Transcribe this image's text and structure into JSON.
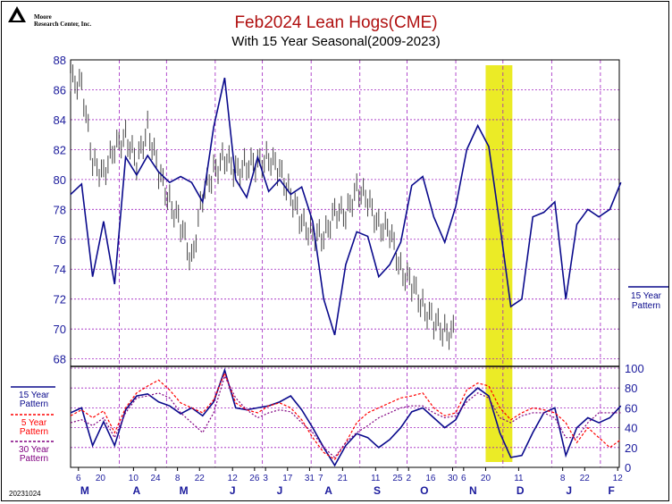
{
  "header": {
    "title": "Feb2024 Lean Hogs(CME)",
    "subtitle": "With 15 Year Seasonal(2009-2023)",
    "logo_text": [
      "Moore",
      "Research Center, Inc."
    ],
    "date_stamp": "20231024"
  },
  "colors": {
    "price_bars": "#444444",
    "seasonal_15": "#0a0a8c",
    "seasonal_5": "#ff0000",
    "seasonal_30": "#800080",
    "grid": "#a020c0",
    "highlight": "#e8e800",
    "axis_text": "#1a1a9c"
  },
  "chart_data": [
    {
      "type": "line",
      "panel": "price",
      "ylim": [
        67.5,
        88
      ],
      "yticks": [
        68,
        70,
        72,
        74,
        76,
        78,
        80,
        82,
        84,
        86,
        88
      ],
      "grid": true,
      "legend": [
        {
          "name": "15 Year Pattern",
          "label_lines": [
            "15 Year",
            "Pattern"
          ],
          "position": "right"
        }
      ],
      "highlight_window": {
        "start": "Nov 20",
        "end": "Dec 7"
      },
      "series": [
        {
          "name": "15 Year Pattern",
          "type": "line",
          "x": [
            "Mar 1",
            "Mar 8",
            "Mar 15",
            "Mar 22",
            "Mar 29",
            "Apr 5",
            "Apr 12",
            "Apr 19",
            "Apr 26",
            "May 3",
            "May 10",
            "May 17",
            "May 24",
            "May 31",
            "Jun 7",
            "Jun 14",
            "Jun 21",
            "Jun 28",
            "Jul 5",
            "Jul 12",
            "Jul 19",
            "Jul 26",
            "Aug 2",
            "Aug 9",
            "Aug 16",
            "Aug 23",
            "Aug 30",
            "Sep 6",
            "Sep 13",
            "Sep 20",
            "Sep 27",
            "Oct 4",
            "Oct 11",
            "Oct 18",
            "Oct 25",
            "Nov 1",
            "Nov 8",
            "Nov 15",
            "Nov 22",
            "Nov 29",
            "Dec 6",
            "Dec 13",
            "Dec 20",
            "Dec 27",
            "Jan 3",
            "Jan 10",
            "Jan 17",
            "Jan 24",
            "Jan 31",
            "Feb 7",
            "Feb 14"
          ],
          "values": [
            79.0,
            79.7,
            73.5,
            77.2,
            73.0,
            81.5,
            80.3,
            81.6,
            80.5,
            79.8,
            80.2,
            79.8,
            78.5,
            83.5,
            86.8,
            80.0,
            78.8,
            81.5,
            79.2,
            80.0,
            79.0,
            79.5,
            77.2,
            72.0,
            69.6,
            74.3,
            76.5,
            76.2,
            73.5,
            74.3,
            75.8,
            79.6,
            80.2,
            77.5,
            75.8,
            78.2,
            82.0,
            83.6,
            82.2,
            77.0,
            71.5,
            72.0,
            77.5,
            77.8,
            78.5,
            72.0,
            77.0,
            78.0,
            77.5,
            78.0,
            79.8
          ]
        },
        {
          "name": "Feb2024 Lean Hogs daily price",
          "type": "price_bars",
          "x": [
            "Mar 1",
            "Mar 8",
            "Mar 15",
            "Mar 22",
            "Mar 29",
            "Apr 5",
            "Apr 12",
            "Apr 19",
            "Apr 26",
            "May 3",
            "May 10",
            "May 17",
            "May 24",
            "May 31",
            "Jun 7",
            "Jun 14",
            "Jun 21",
            "Jun 28",
            "Jul 5",
            "Jul 12",
            "Jul 19",
            "Jul 26",
            "Aug 2",
            "Aug 9",
            "Aug 16",
            "Aug 23",
            "Aug 30",
            "Sep 6",
            "Sep 13",
            "Sep 20",
            "Sep 27",
            "Oct 4",
            "Oct 11",
            "Oct 18",
            "Oct 25"
          ],
          "values": [
            86.5,
            86.5,
            81.0,
            80.5,
            82.0,
            83.0,
            81.0,
            83.5,
            80.5,
            78.5,
            77.0,
            74.5,
            79.0,
            80.5,
            81.5,
            80.5,
            81.0,
            81.0,
            81.5,
            80.5,
            79.0,
            77.0,
            76.5,
            76.0,
            78.0,
            77.5,
            79.5,
            78.5,
            77.0,
            76.5,
            74.0,
            73.0,
            71.5,
            70.5,
            69.8
          ],
          "range": 1.2
        }
      ]
    },
    {
      "type": "line",
      "panel": "index",
      "ylim": [
        0,
        100
      ],
      "yticks": [
        0,
        20,
        40,
        60,
        80,
        100
      ],
      "grid": true,
      "legend": [
        {
          "name": "15 Year Pattern",
          "label_lines": [
            "15 Year",
            "Pattern"
          ],
          "position": "left"
        },
        {
          "name": "5 Year Pattern",
          "label_lines": [
            "5 Year",
            "Pattern"
          ],
          "position": "left"
        },
        {
          "name": "30 Year Pattern",
          "label_lines": [
            "30 Year",
            "Pattern"
          ],
          "position": "left"
        }
      ],
      "series": [
        {
          "name": "15 Year Pattern",
          "values": [
            55,
            60,
            22,
            46,
            22,
            58,
            72,
            74,
            66,
            62,
            54,
            60,
            52,
            66,
            98,
            60,
            58,
            60,
            62,
            66,
            72,
            58,
            40,
            20,
            2,
            22,
            34,
            30,
            20,
            28,
            40,
            56,
            60,
            50,
            40,
            48,
            70,
            80,
            72,
            35,
            10,
            12,
            35,
            55,
            60,
            12,
            40,
            50,
            45,
            50,
            62
          ]
        },
        {
          "name": "5 Year Pattern",
          "values": [
            52,
            58,
            50,
            57,
            35,
            60,
            75,
            82,
            88,
            78,
            65,
            60,
            55,
            68,
            95,
            65,
            58,
            55,
            62,
            65,
            60,
            48,
            30,
            15,
            8,
            25,
            45,
            55,
            60,
            65,
            70,
            72,
            75,
            60,
            52,
            55,
            78,
            85,
            82,
            60,
            48,
            55,
            60,
            58,
            55,
            45,
            25,
            40,
            30,
            20,
            28
          ]
        },
        {
          "name": "30 Year Pattern",
          "values": [
            45,
            48,
            42,
            50,
            30,
            55,
            70,
            72,
            75,
            70,
            55,
            45,
            35,
            55,
            92,
            70,
            58,
            50,
            55,
            58,
            56,
            45,
            35,
            20,
            10,
            25,
            35,
            42,
            50,
            55,
            60,
            62,
            62,
            55,
            50,
            52,
            66,
            75,
            70,
            50,
            45,
            52,
            55,
            55,
            50,
            30,
            30,
            45,
            55,
            55,
            55
          ]
        }
      ],
      "x_axis": {
        "day_ticks": [
          "6",
          "20",
          "10",
          "24",
          "8",
          "22",
          "12",
          "26",
          "3",
          "17",
          "31",
          "7",
          "21",
          "11",
          "25",
          "2",
          "16",
          "30",
          "6",
          "20",
          "11",
          "8",
          "22",
          "12"
        ],
        "month_ticks": [
          "M",
          "A",
          "M",
          "J",
          "J",
          "A",
          "S",
          "O",
          "N",
          "D",
          "J",
          "F"
        ]
      }
    }
  ]
}
